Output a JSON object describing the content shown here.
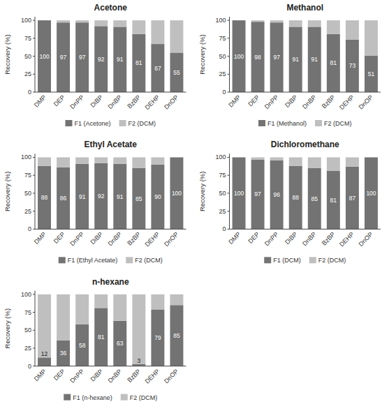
{
  "chart_data": [
    {
      "type": "bar",
      "stacked": true,
      "title": "Acetone",
      "y_label": "Recovery (%)",
      "categories": [
        "DMP",
        "DEP",
        "DnPP",
        "DiBP",
        "DnBP",
        "BzBP",
        "DEHP",
        "DnOP"
      ],
      "series": [
        {
          "name": "F1 (Acetone)",
          "color": "#737373",
          "data_labels": true,
          "values": [
            100,
            97,
            97,
            92,
            91,
            81,
            67,
            55
          ]
        },
        {
          "name": "F2 (DCM)",
          "color": "#bfbfbf",
          "values": [
            0,
            3,
            3,
            8,
            9,
            19,
            33,
            45
          ]
        }
      ],
      "ylim": [
        0,
        105
      ],
      "yticks": [
        0,
        25,
        50,
        75,
        100
      ],
      "grid": false,
      "legend": "bottom"
    },
    {
      "type": "bar",
      "stacked": true,
      "title": "Methanol",
      "y_label": "Recovery (%)",
      "categories": [
        "DMP",
        "DEP",
        "DnPP",
        "DiBP",
        "DnBP",
        "BzBP",
        "DEHP",
        "DnOP"
      ],
      "series": [
        {
          "name": "F1 (Methanol)",
          "color": "#737373",
          "data_labels": true,
          "values": [
            100,
            98,
            97,
            91,
            91,
            81,
            73,
            51
          ]
        },
        {
          "name": "F2 (DCM)",
          "color": "#bfbfbf",
          "values": [
            0,
            2,
            3,
            9,
            9,
            19,
            27,
            49
          ]
        }
      ],
      "ylim": [
        0,
        105
      ],
      "yticks": [
        0,
        25,
        50,
        75,
        100
      ],
      "grid": false,
      "legend": "bottom"
    },
    {
      "type": "bar",
      "stacked": true,
      "title": "Ethyl Acetate",
      "y_label": "Recovery (%)",
      "categories": [
        "DMP",
        "DEP",
        "DnPP",
        "DiBP",
        "DnBP",
        "BzBP",
        "DEHP",
        "DnOP"
      ],
      "series": [
        {
          "name": "F1 (Ethyl Acetate)",
          "color": "#737373",
          "data_labels": true,
          "values": [
            88,
            86,
            91,
            92,
            91,
            85,
            90,
            100
          ]
        },
        {
          "name": "F2 (DCM)",
          "color": "#bfbfbf",
          "values": [
            12,
            14,
            9,
            8,
            9,
            15,
            10,
            0
          ]
        }
      ],
      "ylim": [
        0,
        105
      ],
      "yticks": [
        0,
        25,
        50,
        75,
        100
      ],
      "grid": false,
      "legend": "bottom"
    },
    {
      "type": "bar",
      "stacked": true,
      "title": "Dichloromethane",
      "y_label": "Recovery (%)",
      "categories": [
        "DMP",
        "DEP",
        "DnPP",
        "DiBP",
        "DnBP",
        "BzBP",
        "DEHP",
        "DnOP"
      ],
      "series": [
        {
          "name": "F1 (DCM)",
          "color": "#737373",
          "data_labels": true,
          "values": [
            100,
            97,
            96,
            88,
            85,
            81,
            87,
            100
          ]
        },
        {
          "name": "F2 (DCM)",
          "color": "#bfbfbf",
          "values": [
            0,
            3,
            4,
            12,
            15,
            19,
            13,
            0
          ]
        }
      ],
      "ylim": [
        0,
        105
      ],
      "yticks": [
        0,
        25,
        50,
        75,
        100
      ],
      "grid": false,
      "legend": "bottom"
    },
    {
      "type": "bar",
      "stacked": true,
      "title": "n-hexane",
      "y_label": "Recovery (%)",
      "categories": [
        "DMP",
        "DEP",
        "DnPP",
        "DiBP",
        "DnBP",
        "BzBP",
        "DEHP",
        "DnOP"
      ],
      "series": [
        {
          "name": "F1 (n-hexane)",
          "color": "#737373",
          "data_labels": true,
          "values": [
            12,
            36,
            58,
            81,
            63,
            3,
            79,
            85
          ]
        },
        {
          "name": "F2 (DCM)",
          "color": "#bfbfbf",
          "values": [
            88,
            64,
            42,
            19,
            37,
            97,
            21,
            15
          ]
        }
      ],
      "ylim": [
        0,
        105
      ],
      "yticks": [
        0,
        25,
        50,
        75,
        100
      ],
      "grid": false,
      "legend": "bottom"
    }
  ]
}
